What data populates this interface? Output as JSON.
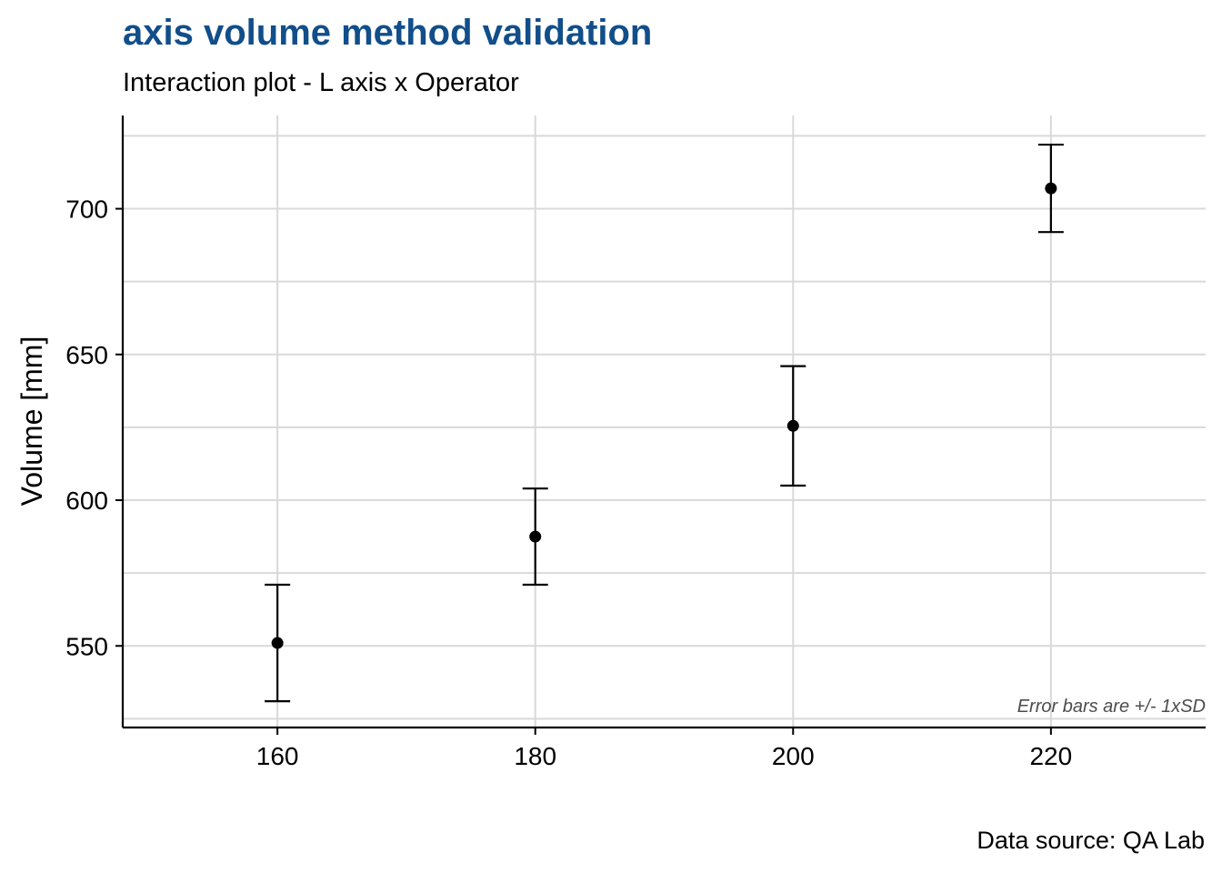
{
  "colors": {
    "title": "#114e8a",
    "grid": "#d9d9d9",
    "axis": "#000000",
    "points": "#000000",
    "note": "#4d4d4d"
  },
  "chart_data": {
    "type": "scatter",
    "title": "axis volume method validation",
    "subtitle": "Interaction plot - L axis x Operator",
    "xlabel": "",
    "ylabel": "Volume [mm]",
    "x_ticks": [
      160,
      180,
      200,
      220
    ],
    "y_ticks": [
      550,
      600,
      650,
      700
    ],
    "xlim": [
      148,
      232
    ],
    "ylim": [
      522,
      732
    ],
    "grid": true,
    "points": [
      {
        "x": 160,
        "y": 551,
        "sd": 20
      },
      {
        "x": 180,
        "y": 587.5,
        "sd": 16.5
      },
      {
        "x": 200,
        "y": 625.5,
        "sd": 20.5
      },
      {
        "x": 220,
        "y": 707,
        "sd": 15
      }
    ],
    "annotation": "Error bars are +/- 1xSD",
    "caption": "Data source: QA Lab"
  }
}
